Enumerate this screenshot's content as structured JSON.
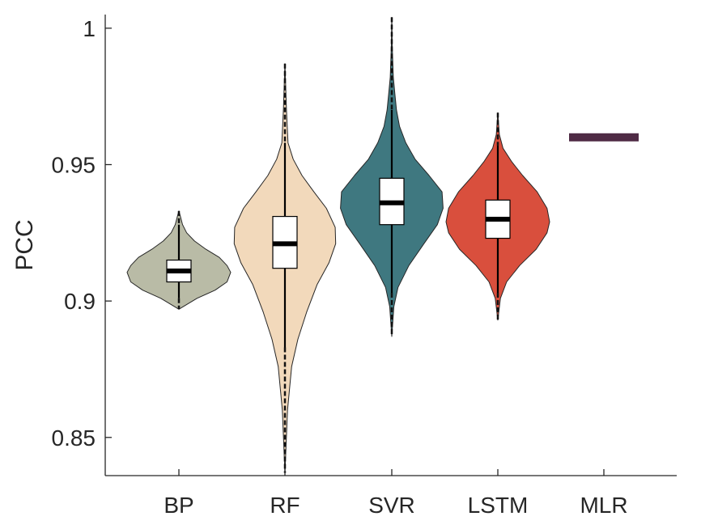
{
  "chart_data": {
    "type": "violin",
    "title": "",
    "xlabel": "",
    "ylabel": "PCC",
    "ylim": [
      0.836,
      1.005
    ],
    "yticks": [
      0.85,
      0.9,
      0.95,
      1
    ],
    "ytick_labels": [
      "0.85",
      "0.9",
      "0.95",
      "1"
    ],
    "categories": [
      "BP",
      "RF",
      "SVR",
      "LSTM",
      "MLR"
    ],
    "grid": false,
    "legend": "none",
    "series": [
      {
        "category": "BP",
        "color": "#B9BBA6",
        "median": 0.911,
        "q1": 0.907,
        "q3": 0.915,
        "whisker_low": 0.901,
        "whisker_high": 0.928,
        "min": 0.897,
        "max": 0.933,
        "violin_profile": [
          [
            0.897,
            0.0
          ],
          [
            0.901,
            0.35
          ],
          [
            0.904,
            0.7
          ],
          [
            0.907,
            0.93
          ],
          [
            0.9105,
            1.0
          ],
          [
            0.913,
            0.93
          ],
          [
            0.916,
            0.78
          ],
          [
            0.919,
            0.52
          ],
          [
            0.922,
            0.3
          ],
          [
            0.925,
            0.15
          ],
          [
            0.928,
            0.07
          ],
          [
            0.931,
            0.03
          ],
          [
            0.933,
            0.0
          ]
        ]
      },
      {
        "category": "RF",
        "color": "#F2D9BB",
        "median": 0.921,
        "q1": 0.912,
        "q3": 0.931,
        "whisker_low": 0.883,
        "whisker_high": 0.958,
        "min": 0.837,
        "max": 0.987,
        "violin_profile": [
          [
            0.837,
            0.0
          ],
          [
            0.86,
            0.05
          ],
          [
            0.876,
            0.13
          ],
          [
            0.886,
            0.25
          ],
          [
            0.896,
            0.42
          ],
          [
            0.906,
            0.62
          ],
          [
            0.914,
            0.85
          ],
          [
            0.921,
            0.98
          ],
          [
            0.927,
            0.97
          ],
          [
            0.934,
            0.8
          ],
          [
            0.94,
            0.56
          ],
          [
            0.946,
            0.33
          ],
          [
            0.952,
            0.16
          ],
          [
            0.958,
            0.06
          ],
          [
            0.97,
            0.03
          ],
          [
            0.987,
            0.0
          ]
        ]
      },
      {
        "category": "SVR",
        "color": "#3F7880",
        "median": 0.936,
        "q1": 0.928,
        "q3": 0.945,
        "whisker_low": 0.903,
        "whisker_high": 0.97,
        "min": 0.887,
        "max": 1.004,
        "violin_profile": [
          [
            0.887,
            0.0
          ],
          [
            0.898,
            0.04
          ],
          [
            0.905,
            0.12
          ],
          [
            0.913,
            0.33
          ],
          [
            0.921,
            0.62
          ],
          [
            0.928,
            0.88
          ],
          [
            0.934,
            0.99
          ],
          [
            0.94,
            0.97
          ],
          [
            0.946,
            0.72
          ],
          [
            0.952,
            0.45
          ],
          [
            0.958,
            0.27
          ],
          [
            0.964,
            0.15
          ],
          [
            0.97,
            0.09
          ],
          [
            0.976,
            0.06
          ],
          [
            0.982,
            0.03
          ],
          [
            0.993,
            0.01
          ],
          [
            1.004,
            0.0
          ]
        ]
      },
      {
        "category": "LSTM",
        "color": "#D94F3D",
        "median": 0.93,
        "q1": 0.923,
        "q3": 0.937,
        "whisker_low": 0.903,
        "whisker_high": 0.957,
        "min": 0.893,
        "max": 0.969,
        "violin_profile": [
          [
            0.893,
            0.0
          ],
          [
            0.901,
            0.05
          ],
          [
            0.907,
            0.17
          ],
          [
            0.913,
            0.42
          ],
          [
            0.919,
            0.74
          ],
          [
            0.925,
            0.95
          ],
          [
            0.929,
            1.0
          ],
          [
            0.934,
            0.95
          ],
          [
            0.94,
            0.76
          ],
          [
            0.946,
            0.48
          ],
          [
            0.951,
            0.27
          ],
          [
            0.956,
            0.1
          ],
          [
            0.961,
            0.03
          ],
          [
            0.969,
            0.0
          ]
        ]
      },
      {
        "category": "MLR",
        "color": "#4F2B45",
        "value": 0.96,
        "single_value": true
      }
    ]
  }
}
